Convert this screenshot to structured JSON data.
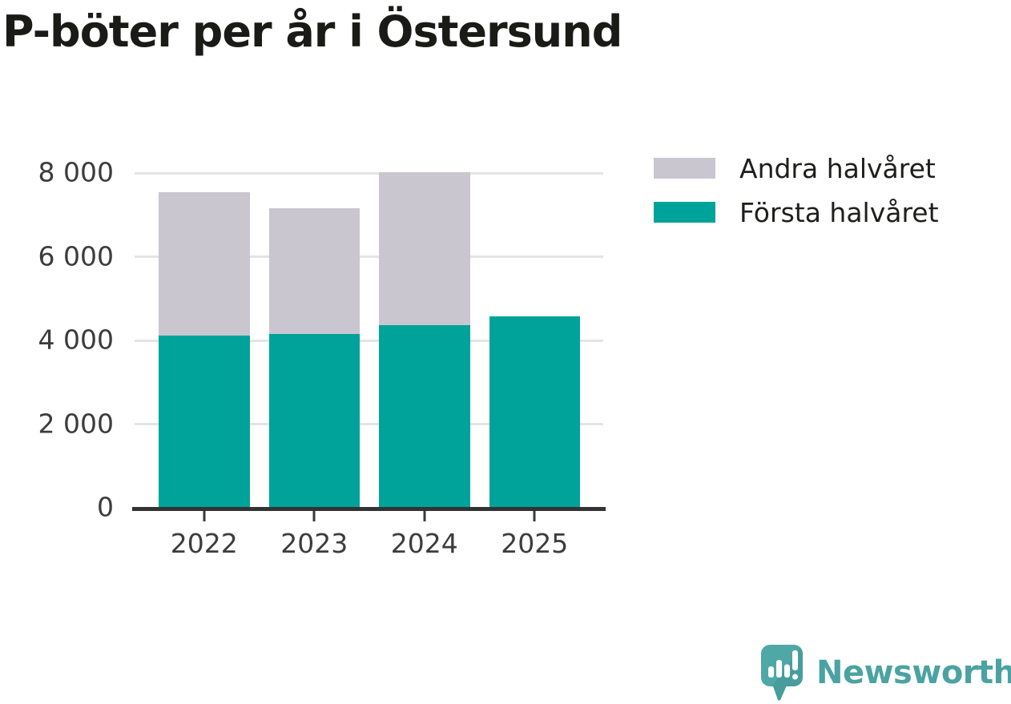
{
  "title": "P-böter per år i Östersund",
  "legend": [
    {
      "label": "Andra halvåret",
      "color": "#c9c6d0"
    },
    {
      "label": "Första halvåret",
      "color": "#00a399"
    }
  ],
  "chart_data": {
    "type": "bar",
    "stacked": true,
    "title": "P-böter per år i Östersund",
    "categories": [
      "2022",
      "2023",
      "2024",
      "2025"
    ],
    "series": [
      {
        "name": "Första halvåret",
        "color": "#00a399",
        "values": [
          4120,
          4150,
          4370,
          4570
        ]
      },
      {
        "name": "Andra halvåret",
        "color": "#c9c6d0",
        "values": [
          3430,
          3000,
          3650,
          0
        ]
      }
    ],
    "xlabel": "",
    "ylabel": "",
    "ylim": [
      0,
      8000
    ],
    "yticks": [
      {
        "value": 0,
        "label": "0"
      },
      {
        "value": 2000,
        "label": "2 000"
      },
      {
        "value": 4000,
        "label": "4 000"
      },
      {
        "value": 6000,
        "label": "6 000"
      },
      {
        "value": 8000,
        "label": "8 000"
      }
    ],
    "grid": true,
    "legend_position": "right-top"
  },
  "branding": {
    "name": "Newsworthy"
  }
}
